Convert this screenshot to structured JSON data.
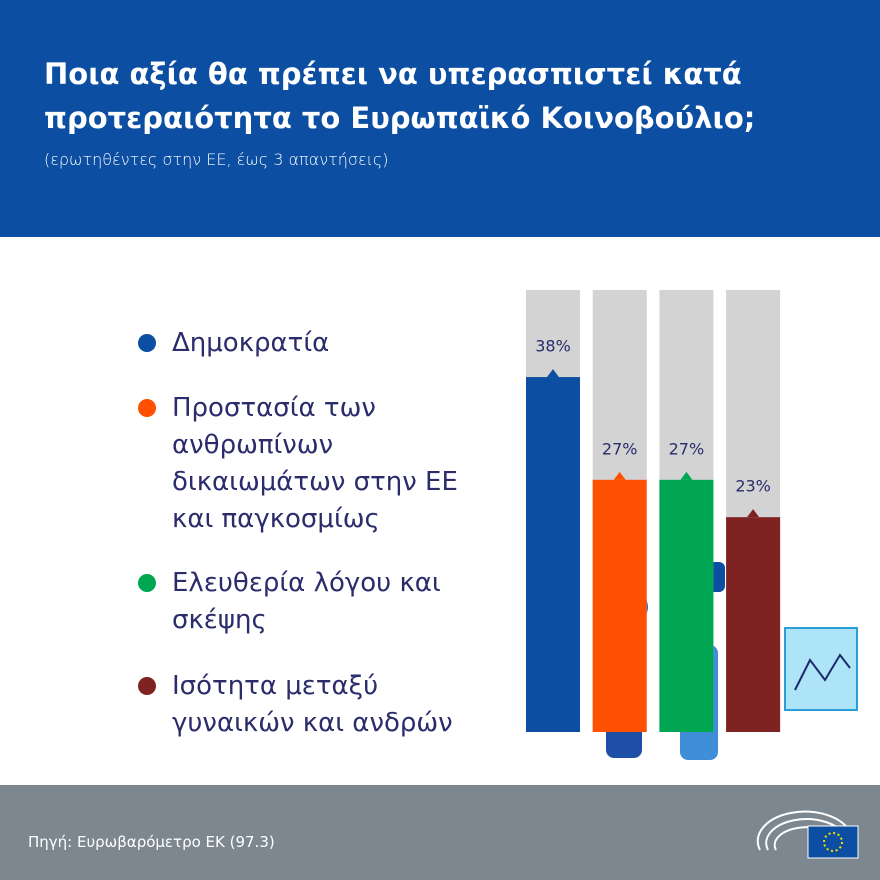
{
  "chart_data": {
    "type": "bar",
    "title": "Ποια αξία θα πρέπει να υπερασπιστεί κατά προτεραιότητα το Ευρωπαϊκό Κοινοβούλιο;",
    "subtitle": "(ερωτηθέντες στην ΕΕ, έως 3 απαντήσεις)",
    "categories": [
      "Δημοκρατία",
      "Προστασία των ανθρωπίνων δικαιωμάτων στην ΕΕ και παγκοσμίως",
      "Ελευθερία λόγου και σκέψης",
      "Ισότητα μεταξύ γυναικών και ανδρών"
    ],
    "values": [
      38,
      27,
      27,
      23
    ],
    "value_labels": [
      "38%",
      "27%",
      "27%",
      "23%"
    ],
    "colors": [
      "#0b4ea2",
      "#ff4f00",
      "#00a651",
      "#7f2222"
    ],
    "source": "Πηγή: Ευρωβαρόμετρο ΕΚ (97.3)"
  }
}
